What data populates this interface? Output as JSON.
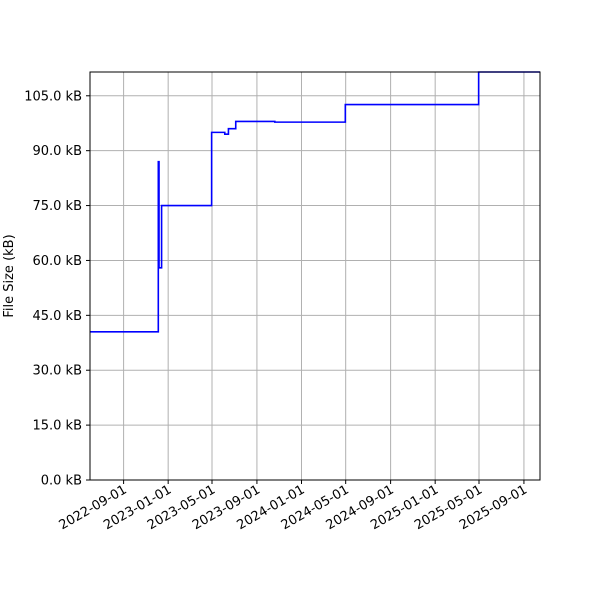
{
  "chart_data": {
    "type": "line",
    "title": "",
    "xlabel": "",
    "ylabel": "File Size (kB)",
    "x_axis_type": "date",
    "xlim": [
      "2022-06-01",
      "2025-10-15"
    ],
    "ylim": [
      0,
      111.5
    ],
    "grid": true,
    "legend": "none",
    "line_color": "#0000ff",
    "y_ticks": [
      0,
      15,
      30,
      45,
      60,
      75,
      90,
      105
    ],
    "y_tick_labels": [
      "0.0 kB",
      "15.0 kB",
      "30.0 kB",
      "45.0 kB",
      "60.0 kB",
      "75.0 kB",
      "90.0 kB",
      "105.0 kB"
    ],
    "x_ticks": [
      "2022-09-01",
      "2023-01-01",
      "2023-05-01",
      "2023-09-01",
      "2024-01-01",
      "2024-05-01",
      "2024-09-01",
      "2025-01-01",
      "2025-05-01",
      "2025-09-01"
    ],
    "x_tick_labels": [
      "2022-09-01",
      "2023-01-01",
      "2023-05-01",
      "2023-09-01",
      "2024-01-01",
      "2024-05-01",
      "2024-09-01",
      "2025-01-01",
      "2025-05-01",
      "2025-09-01"
    ],
    "series": [
      {
        "step": "post",
        "x": [
          "2022-06-01",
          "2022-12-05",
          "2022-12-07",
          "2022-12-14",
          "2023-04-30",
          "2023-06-05",
          "2023-06-15",
          "2023-07-05",
          "2023-10-20",
          "2024-04-30",
          "2025-04-30",
          "2025-10-15"
        ],
        "y": [
          40.5,
          87.0,
          58.0,
          75.0,
          95.0,
          94.5,
          96.0,
          98.0,
          97.8,
          102.6,
          111.5,
          111.5
        ]
      }
    ]
  }
}
